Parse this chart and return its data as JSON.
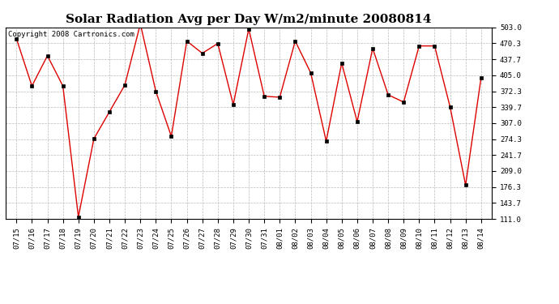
{
  "title": "Solar Radiation Avg per Day W/m2/minute 20080814",
  "copyright": "Copyright 2008 Cartronics.com",
  "labels": [
    "07/15",
    "07/16",
    "07/17",
    "07/18",
    "07/19",
    "07/20",
    "07/21",
    "07/22",
    "07/23",
    "07/24",
    "07/25",
    "07/26",
    "07/27",
    "07/28",
    "07/29",
    "07/30",
    "07/31",
    "08/01",
    "08/02",
    "08/03",
    "08/04",
    "08/05",
    "08/06",
    "08/07",
    "08/08",
    "08/09",
    "08/10",
    "08/11",
    "08/12",
    "08/13",
    "08/14"
  ],
  "values": [
    480,
    383,
    445,
    383,
    115,
    275,
    330,
    385,
    510,
    372,
    280,
    475,
    450,
    470,
    345,
    500,
    362,
    360,
    475,
    410,
    270,
    430,
    310,
    460,
    365,
    350,
    465,
    465,
    340,
    180,
    400
  ],
  "line_color": "#dd0000",
  "marker_color": "#000000",
  "bg_color": "#ffffff",
  "grid_color": "#bbbbbb",
  "ymin": 111.0,
  "ymax": 503.0,
  "yticks": [
    111.0,
    143.7,
    176.3,
    209.0,
    241.7,
    274.3,
    307.0,
    339.7,
    372.3,
    405.0,
    437.7,
    470.3,
    503.0
  ],
  "title_fontsize": 11,
  "tick_fontsize": 6.5,
  "copyright_fontsize": 6.5
}
